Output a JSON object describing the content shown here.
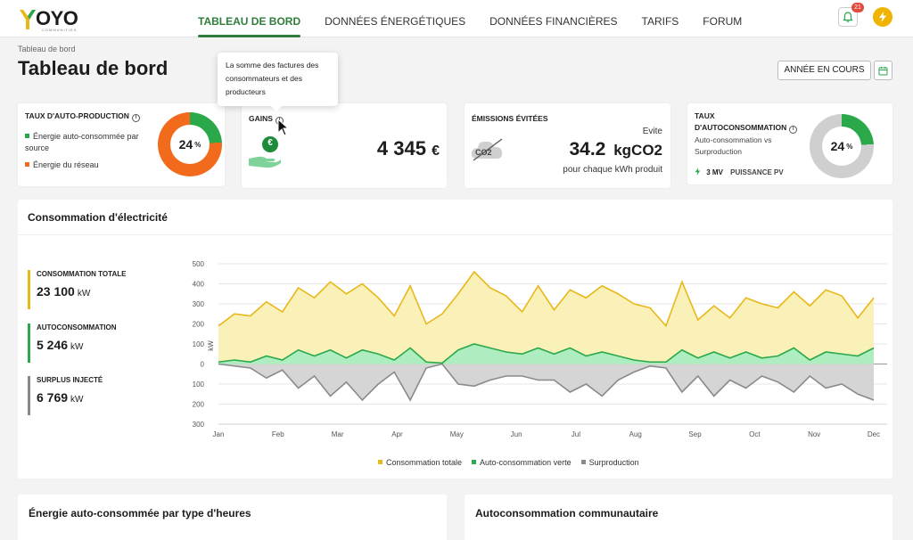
{
  "nav": {
    "logo_text": "OYO",
    "logo_sub": "COMMUNITIES",
    "items": [
      "TABLEAU DE BORD",
      "DONNÉES ÉNERGÉTIQUES",
      "DONNÉES FINANCIÈRES",
      "TARIFS",
      "FORUM"
    ],
    "notif_count": "21"
  },
  "page": {
    "breadcrumb": "Tableau de bord",
    "title": "Tableau de bord",
    "year_button": "ANNÉE EN COURS"
  },
  "tooltip": "La somme des factures des consommateurs et des producteurs",
  "cards": {
    "autoprod": {
      "title": "TAUX D'AUTO-PRODUCTION",
      "legend_green": "Énergie auto-consommée par source",
      "legend_orange": "Énergie du réseau",
      "value": "24",
      "unit": "%",
      "fraction": 0.24
    },
    "gains": {
      "title": "GAINS",
      "value": "4 345",
      "unit": "€",
      "coin": "€"
    },
    "emissions": {
      "title": "ÉMISSIONS ÉVITÉES",
      "evite": "Evite",
      "value": "34.2",
      "unit": "kgCO2",
      "sub": "pour chaque kWh produit",
      "icon_text": "CO2"
    },
    "autoconso": {
      "title1": "TAUX",
      "title2": "D'AUTOCONSOMMATION",
      "desc": "Auto-consommation vs Surproduction",
      "pv_value": "3 MV",
      "pv_label": "PUISSANCE PV",
      "value": "24",
      "unit": "%",
      "fraction": 0.24
    }
  },
  "consumption": {
    "title": "Consommation d'électricité",
    "kpis": [
      {
        "label": "CONSOMMATION TOTALE",
        "value": "23 100",
        "unit": "kW",
        "color": "#e8b71a"
      },
      {
        "label": "AUTOCONSOMMATION",
        "value": "5 246",
        "unit": "kW",
        "color": "#2aa84a"
      },
      {
        "label": "SURPLUS INJECTÉ",
        "value": "6 769",
        "unit": "kW",
        "color": "#8a8a8a"
      }
    ]
  },
  "chart_data": {
    "type": "area",
    "ylabel": "kW",
    "ylim": [
      -300,
      500
    ],
    "y_ticks": [
      500,
      400,
      300,
      200,
      100,
      0,
      -100,
      -200,
      -300
    ],
    "y_tick_labels": [
      "500",
      "400",
      "300",
      "200",
      "100",
      "0",
      "100",
      "200",
      "300"
    ],
    "x_ticks": [
      "Jan",
      "Feb",
      "Mar",
      "Apr",
      "May",
      "Jun",
      "Jul",
      "Aug",
      "Sep",
      "Oct",
      "Nov",
      "Dec"
    ],
    "grid": true,
    "legend_position": "bottom",
    "series": [
      {
        "name": "Consommation totale",
        "color": "#e8b71a",
        "values": [
          190,
          250,
          240,
          310,
          260,
          380,
          330,
          410,
          350,
          400,
          330,
          240,
          390,
          200,
          250,
          350,
          460,
          380,
          340,
          260,
          390,
          270,
          370,
          330,
          390,
          350,
          300,
          280,
          190,
          410,
          220,
          290,
          230,
          330,
          300,
          280,
          360,
          290,
          370,
          340,
          230,
          330
        ]
      },
      {
        "name": "Auto-consommation verte",
        "color": "#2aa84a",
        "values": [
          10,
          20,
          10,
          40,
          20,
          70,
          40,
          70,
          30,
          70,
          50,
          20,
          80,
          10,
          5,
          70,
          100,
          80,
          60,
          50,
          80,
          50,
          80,
          40,
          60,
          40,
          20,
          10,
          10,
          70,
          30,
          60,
          30,
          60,
          30,
          40,
          80,
          20,
          60,
          50,
          40,
          80
        ]
      },
      {
        "name": "Surproduction",
        "color": "#8a8a8a",
        "values": [
          0,
          -10,
          -20,
          -70,
          -30,
          -120,
          -60,
          -160,
          -90,
          -180,
          -100,
          -40,
          -180,
          -20,
          0,
          -100,
          -110,
          -80,
          -60,
          -60,
          -80,
          -80,
          -140,
          -100,
          -160,
          -80,
          -40,
          -10,
          -20,
          -140,
          -60,
          -160,
          -80,
          -120,
          -60,
          -90,
          -140,
          -60,
          -120,
          -100,
          -150,
          -180
        ]
      }
    ]
  },
  "bottom": {
    "left_title": "Énergie auto-consommée par type d'heures",
    "right_title": "Autoconsommation communautaire"
  }
}
